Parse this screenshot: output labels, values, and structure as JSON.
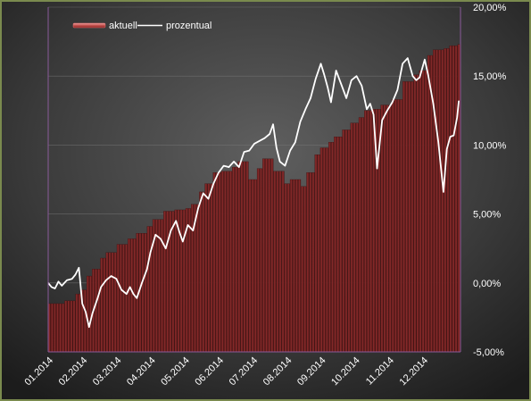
{
  "chart_data": {
    "type": "bar+line",
    "title": "",
    "legend": {
      "placement": "top-left",
      "entries": [
        {
          "key": "aktuell",
          "label": "aktuell",
          "style": "bar",
          "color": "#c0504d"
        },
        {
          "key": "prozentual",
          "label": "prozentual",
          "style": "line",
          "color": "#ffffff"
        }
      ]
    },
    "x_tick_labels": [
      "01.2014",
      "02.2014",
      "03.2014",
      "04.2014",
      "05.2014",
      "06.2014",
      "07.2014",
      "08.2014",
      "09.2014",
      "10.2014",
      "11.2014",
      "12.2014"
    ],
    "y_axis": {
      "position": "right",
      "ylim": [
        -5,
        20
      ],
      "tick_values": [
        -5,
        0,
        5,
        10,
        15,
        20
      ],
      "tick_labels": [
        "-5,00%",
        "0,00%",
        "5,00%",
        "10,00%",
        "15,00%",
        "20,00%"
      ],
      "grid": true
    },
    "series": [
      {
        "name": "aktuell",
        "type": "bar",
        "points": [
          [
            0,
            -1.5
          ],
          [
            0.3,
            -1.5
          ],
          [
            0.5,
            -1.3
          ],
          [
            0.8,
            -0.8
          ],
          [
            1.0,
            -0.5
          ],
          [
            1.1,
            0.5
          ],
          [
            1.3,
            1.0
          ],
          [
            1.5,
            1.8
          ],
          [
            1.7,
            2.2
          ],
          [
            2.0,
            2.8
          ],
          [
            2.3,
            3.2
          ],
          [
            2.6,
            3.6
          ],
          [
            2.9,
            4.1
          ],
          [
            3.1,
            4.6
          ],
          [
            3.4,
            5.2
          ],
          [
            3.7,
            5.3
          ],
          [
            4.0,
            5.4
          ],
          [
            4.2,
            5.7
          ],
          [
            4.4,
            6.6
          ],
          [
            4.6,
            7.2
          ],
          [
            4.8,
            8.0
          ],
          [
            5.1,
            8.1
          ],
          [
            5.4,
            8.4
          ],
          [
            5.6,
            8.8
          ],
          [
            5.9,
            7.5
          ],
          [
            6.1,
            8.3
          ],
          [
            6.3,
            9.0
          ],
          [
            6.6,
            8.1
          ],
          [
            6.9,
            7.2
          ],
          [
            7.1,
            7.5
          ],
          [
            7.4,
            7.0
          ],
          [
            7.6,
            8.0
          ],
          [
            7.8,
            9.3
          ],
          [
            8.0,
            9.8
          ],
          [
            8.2,
            10.2
          ],
          [
            8.4,
            10.6
          ],
          [
            8.6,
            11.1
          ],
          [
            8.9,
            11.6
          ],
          [
            9.1,
            12.0
          ],
          [
            9.3,
            12.5
          ],
          [
            9.5,
            12.6
          ],
          [
            9.8,
            12.9
          ],
          [
            10.1,
            13.3
          ],
          [
            10.4,
            14.6
          ],
          [
            10.7,
            15.1
          ],
          [
            10.9,
            15.4
          ],
          [
            11.1,
            16.5
          ],
          [
            11.3,
            16.9
          ],
          [
            11.6,
            17.0
          ],
          [
            11.8,
            17.2
          ],
          [
            12.0,
            17.3
          ]
        ]
      },
      {
        "name": "prozentual",
        "type": "line",
        "points": [
          [
            0,
            0.0
          ],
          [
            0.1,
            -0.3
          ],
          [
            0.2,
            -0.4
          ],
          [
            0.3,
            0.1
          ],
          [
            0.4,
            -0.2
          ],
          [
            0.55,
            0.2
          ],
          [
            0.7,
            0.3
          ],
          [
            0.8,
            0.6
          ],
          [
            0.9,
            1.1
          ],
          [
            1.0,
            -1.5
          ],
          [
            1.1,
            -2.1
          ],
          [
            1.2,
            -3.2
          ],
          [
            1.3,
            -2.2
          ],
          [
            1.45,
            -1.1
          ],
          [
            1.55,
            -0.3
          ],
          [
            1.7,
            0.2
          ],
          [
            1.85,
            0.5
          ],
          [
            2.0,
            0.3
          ],
          [
            2.15,
            -0.5
          ],
          [
            2.3,
            -0.8
          ],
          [
            2.4,
            -0.3
          ],
          [
            2.5,
            -0.8
          ],
          [
            2.6,
            -1.1
          ],
          [
            2.75,
            0.0
          ],
          [
            2.9,
            1.0
          ],
          [
            3.0,
            2.2
          ],
          [
            3.15,
            3.5
          ],
          [
            3.3,
            3.2
          ],
          [
            3.45,
            2.5
          ],
          [
            3.6,
            3.8
          ],
          [
            3.75,
            4.5
          ],
          [
            3.85,
            3.7
          ],
          [
            3.95,
            3.0
          ],
          [
            4.1,
            4.2
          ],
          [
            4.25,
            3.8
          ],
          [
            4.4,
            5.4
          ],
          [
            4.55,
            6.5
          ],
          [
            4.7,
            6.1
          ],
          [
            4.85,
            7.2
          ],
          [
            5.0,
            8.0
          ],
          [
            5.15,
            8.5
          ],
          [
            5.3,
            8.4
          ],
          [
            5.45,
            8.8
          ],
          [
            5.6,
            8.4
          ],
          [
            5.75,
            9.5
          ],
          [
            5.9,
            9.6
          ],
          [
            6.05,
            10.1
          ],
          [
            6.2,
            10.3
          ],
          [
            6.35,
            10.5
          ],
          [
            6.5,
            10.8
          ],
          [
            6.6,
            11.5
          ],
          [
            6.7,
            9.8
          ],
          [
            6.8,
            8.8
          ],
          [
            6.95,
            8.5
          ],
          [
            7.1,
            9.6
          ],
          [
            7.25,
            10.2
          ],
          [
            7.4,
            11.7
          ],
          [
            7.55,
            12.6
          ],
          [
            7.7,
            13.4
          ],
          [
            7.85,
            14.8
          ],
          [
            8.0,
            15.9
          ],
          [
            8.1,
            15.1
          ],
          [
            8.2,
            14.2
          ],
          [
            8.3,
            13.1
          ],
          [
            8.45,
            15.4
          ],
          [
            8.6,
            14.4
          ],
          [
            8.75,
            13.4
          ],
          [
            8.9,
            14.7
          ],
          [
            9.05,
            15.0
          ],
          [
            9.2,
            14.3
          ],
          [
            9.35,
            12.6
          ],
          [
            9.45,
            13.0
          ],
          [
            9.55,
            12.2
          ],
          [
            9.65,
            8.3
          ],
          [
            9.8,
            11.8
          ],
          [
            9.95,
            12.5
          ],
          [
            10.1,
            13.1
          ],
          [
            10.25,
            14.0
          ],
          [
            10.4,
            15.9
          ],
          [
            10.55,
            16.3
          ],
          [
            10.7,
            15.0
          ],
          [
            10.8,
            14.7
          ],
          [
            10.9,
            14.9
          ],
          [
            11.05,
            16.2
          ],
          [
            11.15,
            15.1
          ],
          [
            11.3,
            13.0
          ],
          [
            11.45,
            10.2
          ],
          [
            11.6,
            6.6
          ],
          [
            11.7,
            9.7
          ],
          [
            11.8,
            10.6
          ],
          [
            11.9,
            10.7
          ],
          [
            12.0,
            12.0
          ],
          [
            12.05,
            13.2
          ]
        ]
      }
    ]
  }
}
